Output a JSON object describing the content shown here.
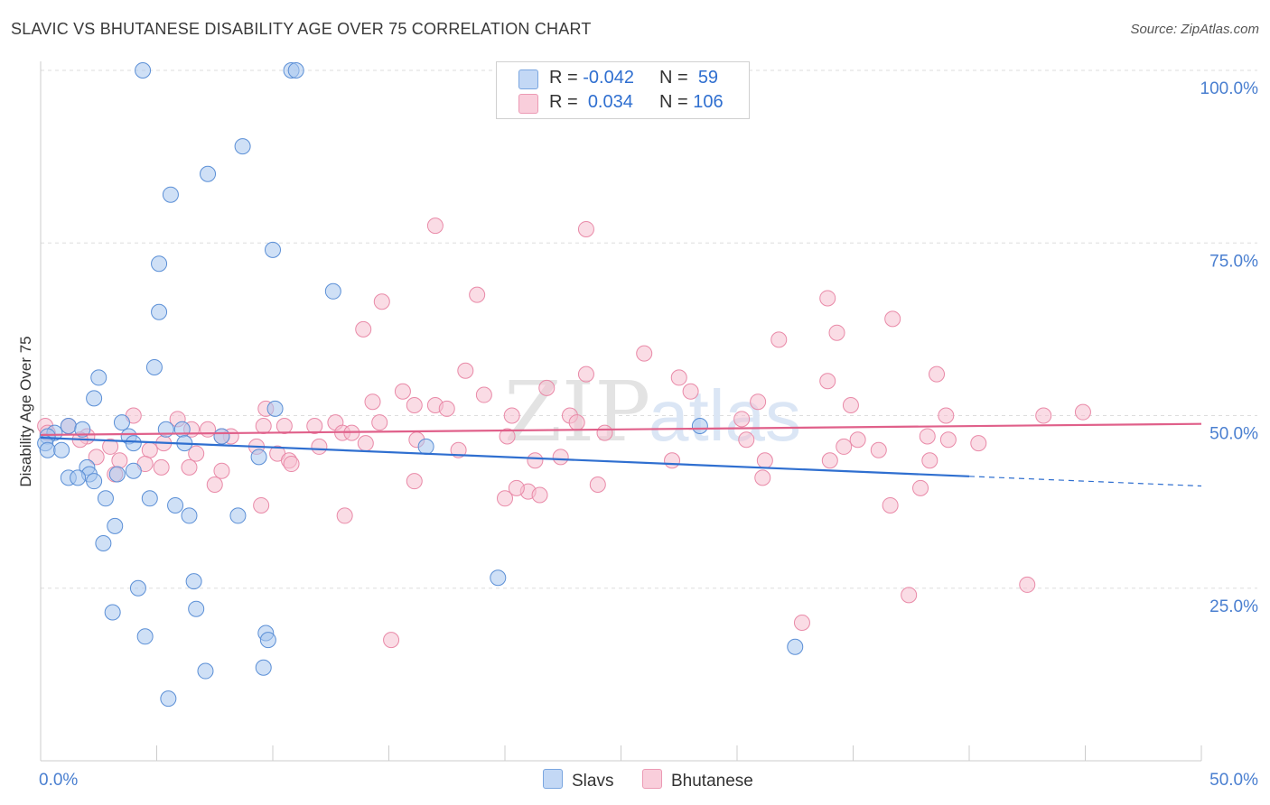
{
  "title": "SLAVIC VS BHUTANESE DISABILITY AGE OVER 75 CORRELATION CHART",
  "source": "Source: ZipAtlas.com",
  "watermark": {
    "zip": "ZIP",
    "atlas": "atlas"
  },
  "legend": {
    "r_label": "R =",
    "n_label": "N =",
    "rows": [
      {
        "name": "Slavs",
        "r": "-0.042",
        "n": "59"
      },
      {
        "name": "Bhutanese",
        "r": "0.034",
        "n": "106"
      }
    ]
  },
  "colors": {
    "slavs_fill": "#a8c6ef",
    "slavs_stroke": "#5b8fd6",
    "slavs_line": "#2f6fd0",
    "bhut_fill": "#f6bfd0",
    "bhut_stroke": "#e98aa8",
    "bhut_line": "#e0608a",
    "grid": "#dddddd",
    "axis_text": "#4a7fd0"
  },
  "chart_data": {
    "type": "scatter",
    "title": "SLAVIC VS BHUTANESE DISABILITY AGE OVER 75 CORRELATION CHART",
    "xlabel": "",
    "ylabel": "Disability Age Over 75",
    "xlim": [
      0,
      50
    ],
    "ylim": [
      0,
      105
    ],
    "x_tick_labels": [
      {
        "value": 0,
        "label": "0.0%"
      },
      {
        "value": 50,
        "label": "50.0%"
      }
    ],
    "x_minor_ticks": [
      0,
      5,
      10,
      15,
      20,
      25,
      30,
      35,
      40,
      45,
      50
    ],
    "y_ticks": [
      {
        "value": 25,
        "label": "25.0%"
      },
      {
        "value": 50,
        "label": "50.0%"
      },
      {
        "value": 75,
        "label": "75.0%"
      },
      {
        "value": 100,
        "label": "100.0%"
      }
    ],
    "series": [
      {
        "name": "Slavs",
        "r": -0.042,
        "n": 59,
        "trend": {
          "x0": 0,
          "y0": 46.8,
          "x1": 40,
          "y1": 41.2,
          "dash_to_x": 50,
          "dash_to_y": 39.8
        },
        "points": [
          [
            4.4,
            100
          ],
          [
            10.8,
            100
          ],
          [
            11.0,
            100
          ],
          [
            8.7,
            89
          ],
          [
            7.2,
            85
          ],
          [
            5.6,
            82
          ],
          [
            10.0,
            74
          ],
          [
            5.1,
            72
          ],
          [
            12.6,
            68
          ],
          [
            5.1,
            65
          ],
          [
            4.9,
            57
          ],
          [
            2.5,
            55.5
          ],
          [
            2.3,
            52.5
          ],
          [
            10.1,
            51
          ],
          [
            1.2,
            48.5
          ],
          [
            3.5,
            49
          ],
          [
            1.8,
            48
          ],
          [
            5.4,
            48
          ],
          [
            6.1,
            48
          ],
          [
            0.6,
            47.5
          ],
          [
            0.3,
            47
          ],
          [
            3.8,
            47
          ],
          [
            7.8,
            47
          ],
          [
            28.4,
            48.5
          ],
          [
            0.2,
            46
          ],
          [
            4.0,
            46
          ],
          [
            6.2,
            46
          ],
          [
            16.6,
            45.5
          ],
          [
            0.3,
            45
          ],
          [
            0.9,
            45
          ],
          [
            9.4,
            44
          ],
          [
            2.0,
            42.5
          ],
          [
            4.0,
            42
          ],
          [
            2.1,
            41.5
          ],
          [
            1.2,
            41
          ],
          [
            3.3,
            41.5
          ],
          [
            2.3,
            40.5
          ],
          [
            1.6,
            41
          ],
          [
            2.8,
            38
          ],
          [
            4.7,
            38
          ],
          [
            5.8,
            37
          ],
          [
            6.4,
            35.5
          ],
          [
            8.5,
            35.5
          ],
          [
            3.2,
            34
          ],
          [
            2.7,
            31.5
          ],
          [
            19.7,
            26.5
          ],
          [
            6.6,
            26
          ],
          [
            4.2,
            25
          ],
          [
            6.7,
            22
          ],
          [
            3.1,
            21.5
          ],
          [
            9.7,
            18.5
          ],
          [
            9.8,
            17.5
          ],
          [
            4.5,
            18
          ],
          [
            32.5,
            16.5
          ],
          [
            7.1,
            13
          ],
          [
            9.6,
            13.5
          ],
          [
            5.5,
            9
          ]
        ]
      },
      {
        "name": "Bhutanese",
        "r": 0.034,
        "n": 106,
        "trend": {
          "x0": 0,
          "y0": 47.2,
          "x1": 50,
          "y1": 48.8
        },
        "points": [
          [
            0.2,
            48.5
          ],
          [
            0.3,
            47.5
          ],
          [
            17.0,
            77.5
          ],
          [
            23.5,
            77
          ],
          [
            18.8,
            67.5
          ],
          [
            14.7,
            66.5
          ],
          [
            33.9,
            67
          ],
          [
            36.7,
            64
          ],
          [
            13.9,
            62.5
          ],
          [
            34.3,
            62
          ],
          [
            31.8,
            61
          ],
          [
            18.3,
            56.5
          ],
          [
            23.5,
            56
          ],
          [
            27.5,
            55.5
          ],
          [
            38.6,
            56
          ],
          [
            33.9,
            55
          ],
          [
            21.8,
            54
          ],
          [
            15.6,
            53.5
          ],
          [
            28.0,
            53.5
          ],
          [
            19.1,
            53
          ],
          [
            14.3,
            52
          ],
          [
            16.1,
            51.5
          ],
          [
            17.0,
            51.5
          ],
          [
            17.5,
            51
          ],
          [
            30.9,
            52
          ],
          [
            34.9,
            51.5
          ],
          [
            9.7,
            51
          ],
          [
            39.0,
            50
          ],
          [
            22.8,
            50
          ],
          [
            20.3,
            50
          ],
          [
            43.2,
            50
          ],
          [
            44.9,
            50.5
          ],
          [
            30.2,
            49.5
          ],
          [
            4.0,
            50
          ],
          [
            5.9,
            49.5
          ],
          [
            23.1,
            49
          ],
          [
            12.7,
            49
          ],
          [
            14.6,
            49
          ],
          [
            11.8,
            48.5
          ],
          [
            10.5,
            48.5
          ],
          [
            1.2,
            48.5
          ],
          [
            6.5,
            48
          ],
          [
            9.6,
            48.5
          ],
          [
            7.2,
            48
          ],
          [
            24.3,
            47.5
          ],
          [
            20.1,
            47
          ],
          [
            13.0,
            47.5
          ],
          [
            8.2,
            47
          ],
          [
            7.8,
            47
          ],
          [
            38.2,
            47
          ],
          [
            39.1,
            46.5
          ],
          [
            40.4,
            46
          ],
          [
            2.0,
            47
          ],
          [
            1.7,
            46.5
          ],
          [
            14.0,
            46
          ],
          [
            16.2,
            46.5
          ],
          [
            30.4,
            46.5
          ],
          [
            35.2,
            46.5
          ],
          [
            34.6,
            45.5
          ],
          [
            5.3,
            46
          ],
          [
            3.0,
            45.5
          ],
          [
            9.3,
            45.5
          ],
          [
            18.0,
            45
          ],
          [
            4.7,
            45
          ],
          [
            12.0,
            45.5
          ],
          [
            6.7,
            44.5
          ],
          [
            36.1,
            45
          ],
          [
            10.2,
            44.5
          ],
          [
            2.4,
            44
          ],
          [
            21.3,
            43.5
          ],
          [
            22.4,
            44
          ],
          [
            27.2,
            43.5
          ],
          [
            31.2,
            43.5
          ],
          [
            38.3,
            43.5
          ],
          [
            34.0,
            43.5
          ],
          [
            4.5,
            43
          ],
          [
            3.4,
            43.5
          ],
          [
            10.7,
            43.5
          ],
          [
            10.8,
            43
          ],
          [
            5.2,
            42.5
          ],
          [
            6.4,
            42.5
          ],
          [
            7.8,
            42
          ],
          [
            3.2,
            41.5
          ],
          [
            31.1,
            41
          ],
          [
            16.1,
            40.5
          ],
          [
            7.5,
            40
          ],
          [
            24.0,
            40
          ],
          [
            37.9,
            39.5
          ],
          [
            21.0,
            39
          ],
          [
            20.0,
            38
          ],
          [
            20.5,
            39.5
          ],
          [
            21.5,
            38.5
          ],
          [
            9.5,
            37
          ],
          [
            36.6,
            37
          ],
          [
            13.1,
            35.5
          ],
          [
            42.5,
            25.5
          ],
          [
            37.4,
            24
          ],
          [
            32.8,
            20
          ],
          [
            15.1,
            17.5
          ],
          [
            26.0,
            59
          ],
          [
            13.4,
            47.5
          ]
        ]
      }
    ]
  }
}
